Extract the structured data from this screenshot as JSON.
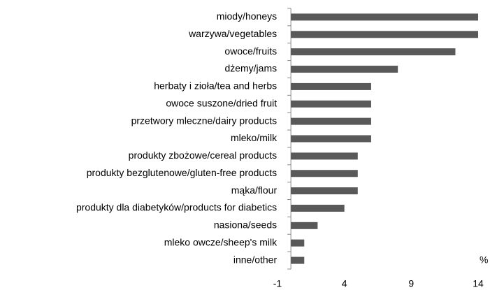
{
  "chart_data": {
    "type": "bar",
    "orientation": "horizontal",
    "categories": [
      "miody/honeys",
      "warzywa/vegetables",
      "owoce/fruits",
      "dżemy/jams",
      "herbaty i zioła/tea and herbs",
      "owoce suszone/dried fruit",
      "przetwory mleczne/dairy products",
      "mleko/milk",
      "produkty zbożowe/cereal products",
      "produkty bezglutenowe/gluten-free products",
      "mąka/flour",
      "produkty dla diabetyków/products for diabetics",
      "nasiona/seeds",
      "mleko owcze/sheep's milk",
      "inne/other"
    ],
    "values": [
      14,
      14,
      12.3,
      8,
      6,
      6,
      6,
      6,
      5,
      5,
      5,
      4,
      2,
      1,
      1
    ],
    "color": "#595959",
    "xlim": [
      -1,
      14
    ],
    "xticks": [
      -1,
      4,
      9,
      14
    ],
    "x_unit": "%",
    "grid": false
  }
}
